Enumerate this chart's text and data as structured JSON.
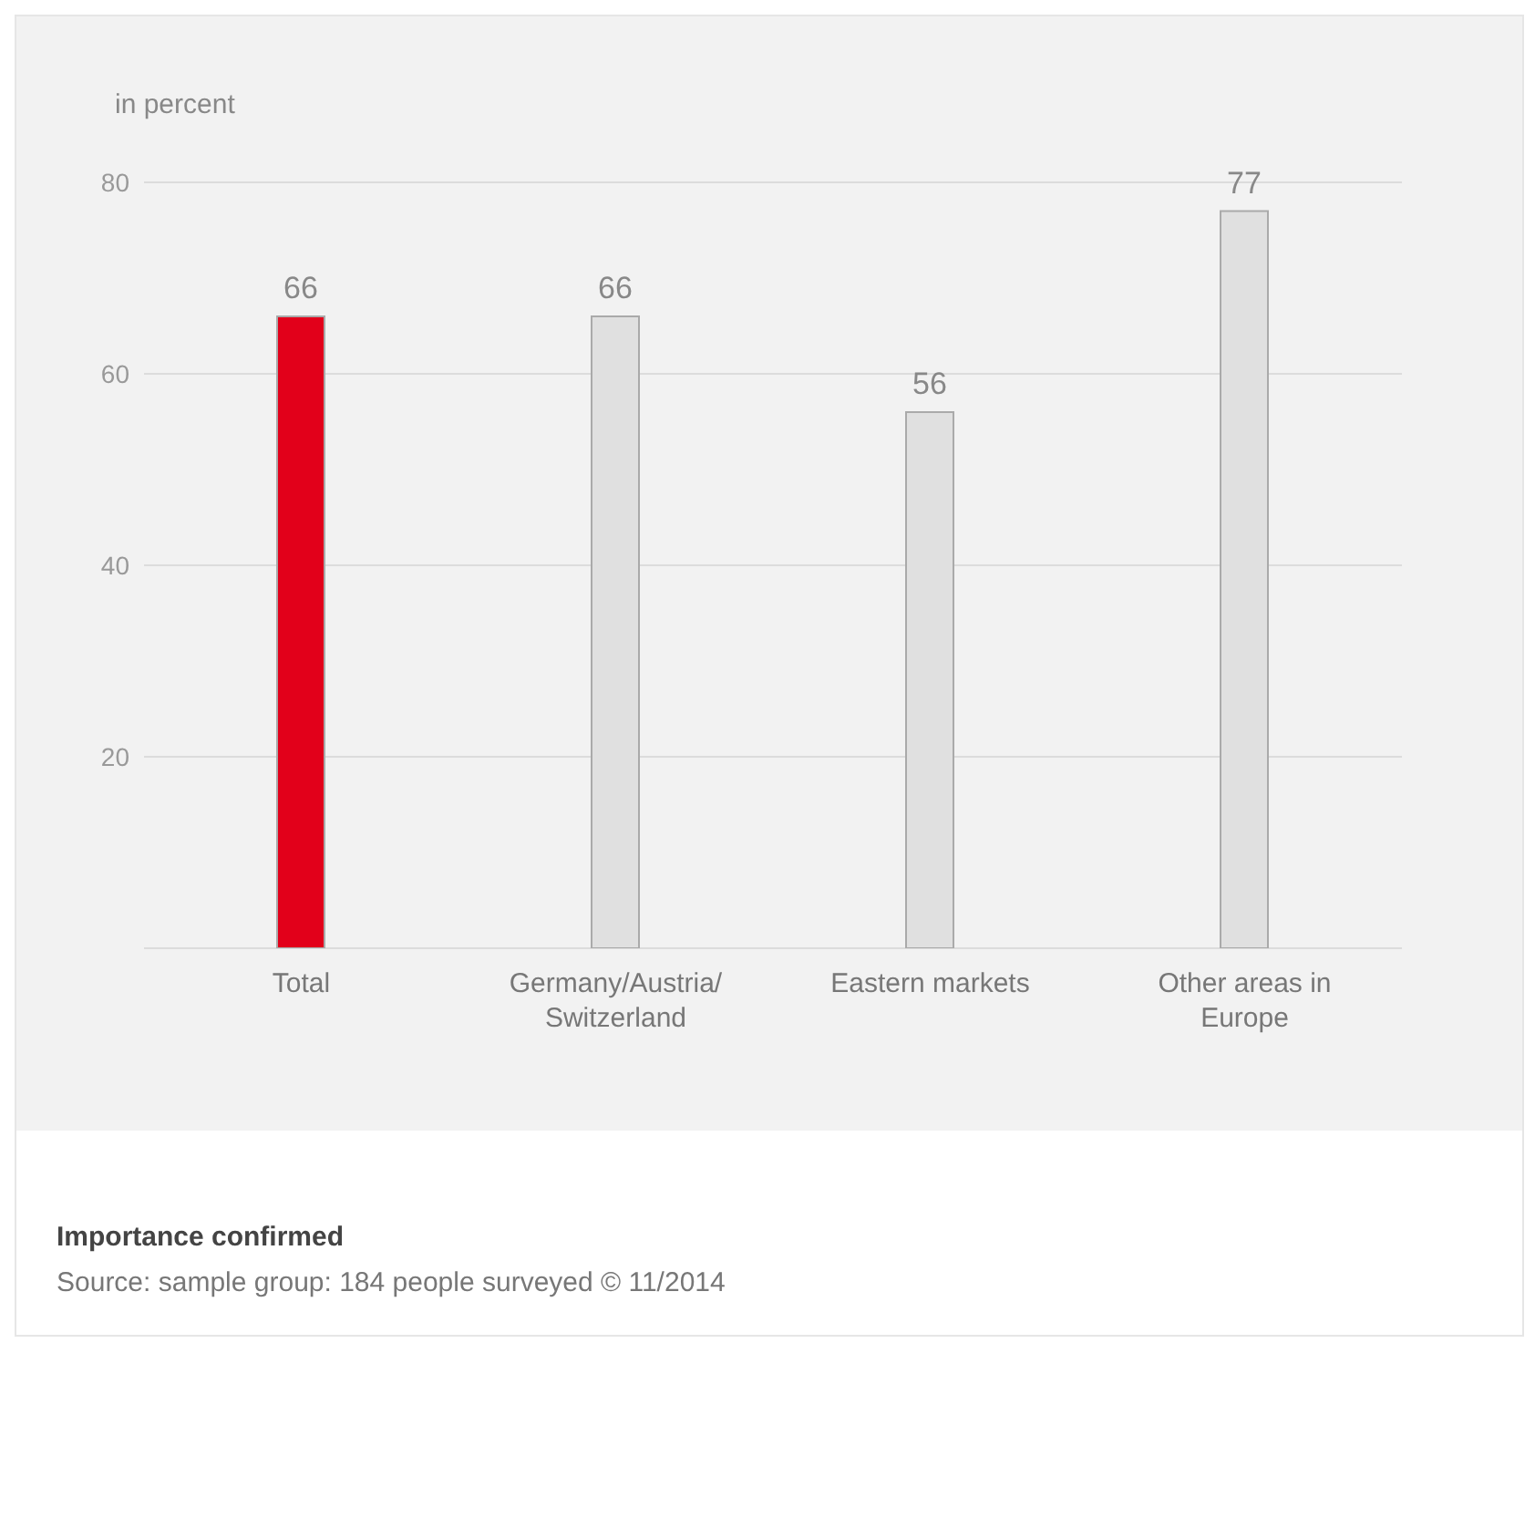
{
  "chart_data": {
    "type": "bar",
    "ylabel": "in percent",
    "categories": [
      "Total",
      "Germany/Austria/Switzerland",
      "Eastern markets",
      "Other areas in Europe"
    ],
    "values": [
      66,
      66,
      56,
      77
    ],
    "colors": [
      "#e2001a",
      "#e0e0e0",
      "#e0e0e0",
      "#e0e0e0"
    ],
    "ylim": [
      0,
      80
    ],
    "yticks": [
      20,
      40,
      60,
      80
    ],
    "grid": "y",
    "data_labels": true,
    "legend": false,
    "title": "Importance confirmed",
    "annotations": [
      "Source: sample group: 184 people surveyed © 11/2014"
    ]
  }
}
